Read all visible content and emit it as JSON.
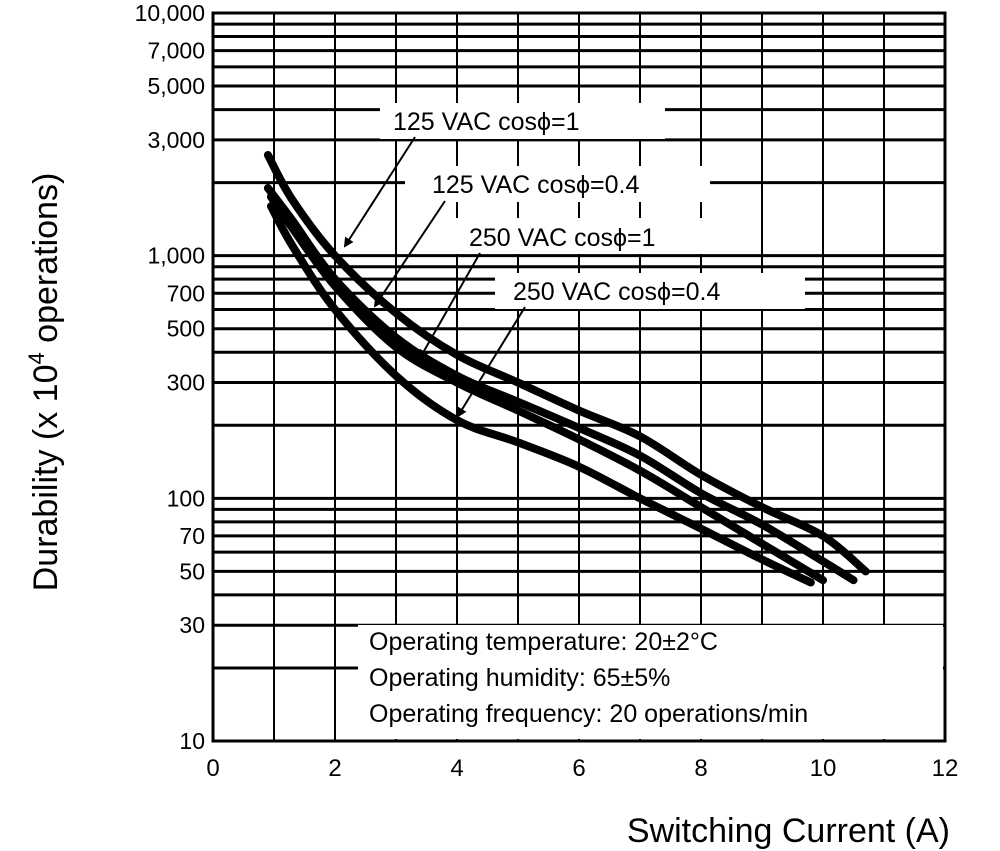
{
  "chart_data": {
    "type": "line",
    "title": "",
    "xlabel": "Switching Current (A)",
    "ylabel_main": "Durability  (x 10",
    "ylabel_sup": "4",
    "ylabel_end": " operations)",
    "x_scale": "linear",
    "y_scale": "log",
    "xlim": [
      0,
      12
    ],
    "ylim": [
      10,
      10000
    ],
    "grid": true,
    "x_ticks": [
      0,
      2,
      4,
      6,
      8,
      10,
      12
    ],
    "x_tick_labels": [
      "0",
      "2",
      "4",
      "6",
      "8",
      "10",
      "12"
    ],
    "y_ticks": [
      10,
      30,
      50,
      70,
      100,
      300,
      500,
      700,
      1000,
      3000,
      5000,
      7000,
      10000
    ],
    "y_tick_labels": [
      "10",
      "30",
      "50",
      "70",
      "100",
      "300",
      "500",
      "700",
      "1,000",
      "3,000",
      "5,000",
      "7,000",
      "10,000"
    ],
    "y_gridlines": [
      10,
      20,
      30,
      40,
      50,
      60,
      70,
      80,
      90,
      100,
      200,
      300,
      400,
      500,
      600,
      700,
      800,
      900,
      1000,
      2000,
      3000,
      4000,
      5000,
      6000,
      7000,
      8000,
      9000,
      10000
    ],
    "series": [
      {
        "name": "125 VAC cosϕ=1",
        "x": [
          0.9,
          1.3,
          2.0,
          3.0,
          4.0,
          5.0,
          6.0,
          7.0,
          8.0,
          9.0,
          10.0,
          10.7
        ],
        "y": [
          2600,
          1700,
          1000,
          580,
          390,
          300,
          230,
          180,
          125,
          92,
          70,
          50
        ]
      },
      {
        "name": "125 VAC cosϕ=0.4",
        "x": [
          0.9,
          1.3,
          2.0,
          3.0,
          4.0,
          5.0,
          6.0,
          7.0,
          8.0,
          9.0,
          10.0,
          10.5
        ],
        "y": [
          1900,
          1400,
          800,
          460,
          320,
          250,
          195,
          150,
          105,
          78,
          55,
          46
        ]
      },
      {
        "name": "250 VAC cosϕ=1",
        "x": [
          0.95,
          1.3,
          2.0,
          3.0,
          4.0,
          5.0,
          6.0,
          7.0,
          8.0,
          9.0,
          10.0
        ],
        "y": [
          1750,
          1300,
          750,
          420,
          300,
          230,
          175,
          130,
          92,
          65,
          46
        ]
      },
      {
        "name": "250 VAC cosϕ=0.4",
        "x": [
          0.95,
          1.3,
          2.0,
          3.0,
          4.0,
          5.0,
          6.0,
          7.0,
          8.0,
          9.0,
          9.8
        ],
        "y": [
          1600,
          1100,
          600,
          320,
          210,
          170,
          135,
          100,
          75,
          56,
          45
        ]
      }
    ],
    "annotations": {
      "series_labels": [
        "125 VAC cosϕ=1",
        "125 VAC cosϕ=0.4",
        "250 VAC cosϕ=1",
        "250 VAC cosϕ=0.4"
      ],
      "conditions": [
        "Operating temperature: 20±2°C",
        "Operating humidity: 65±5%",
        "Operating frequency: 20 operations/min"
      ]
    }
  }
}
